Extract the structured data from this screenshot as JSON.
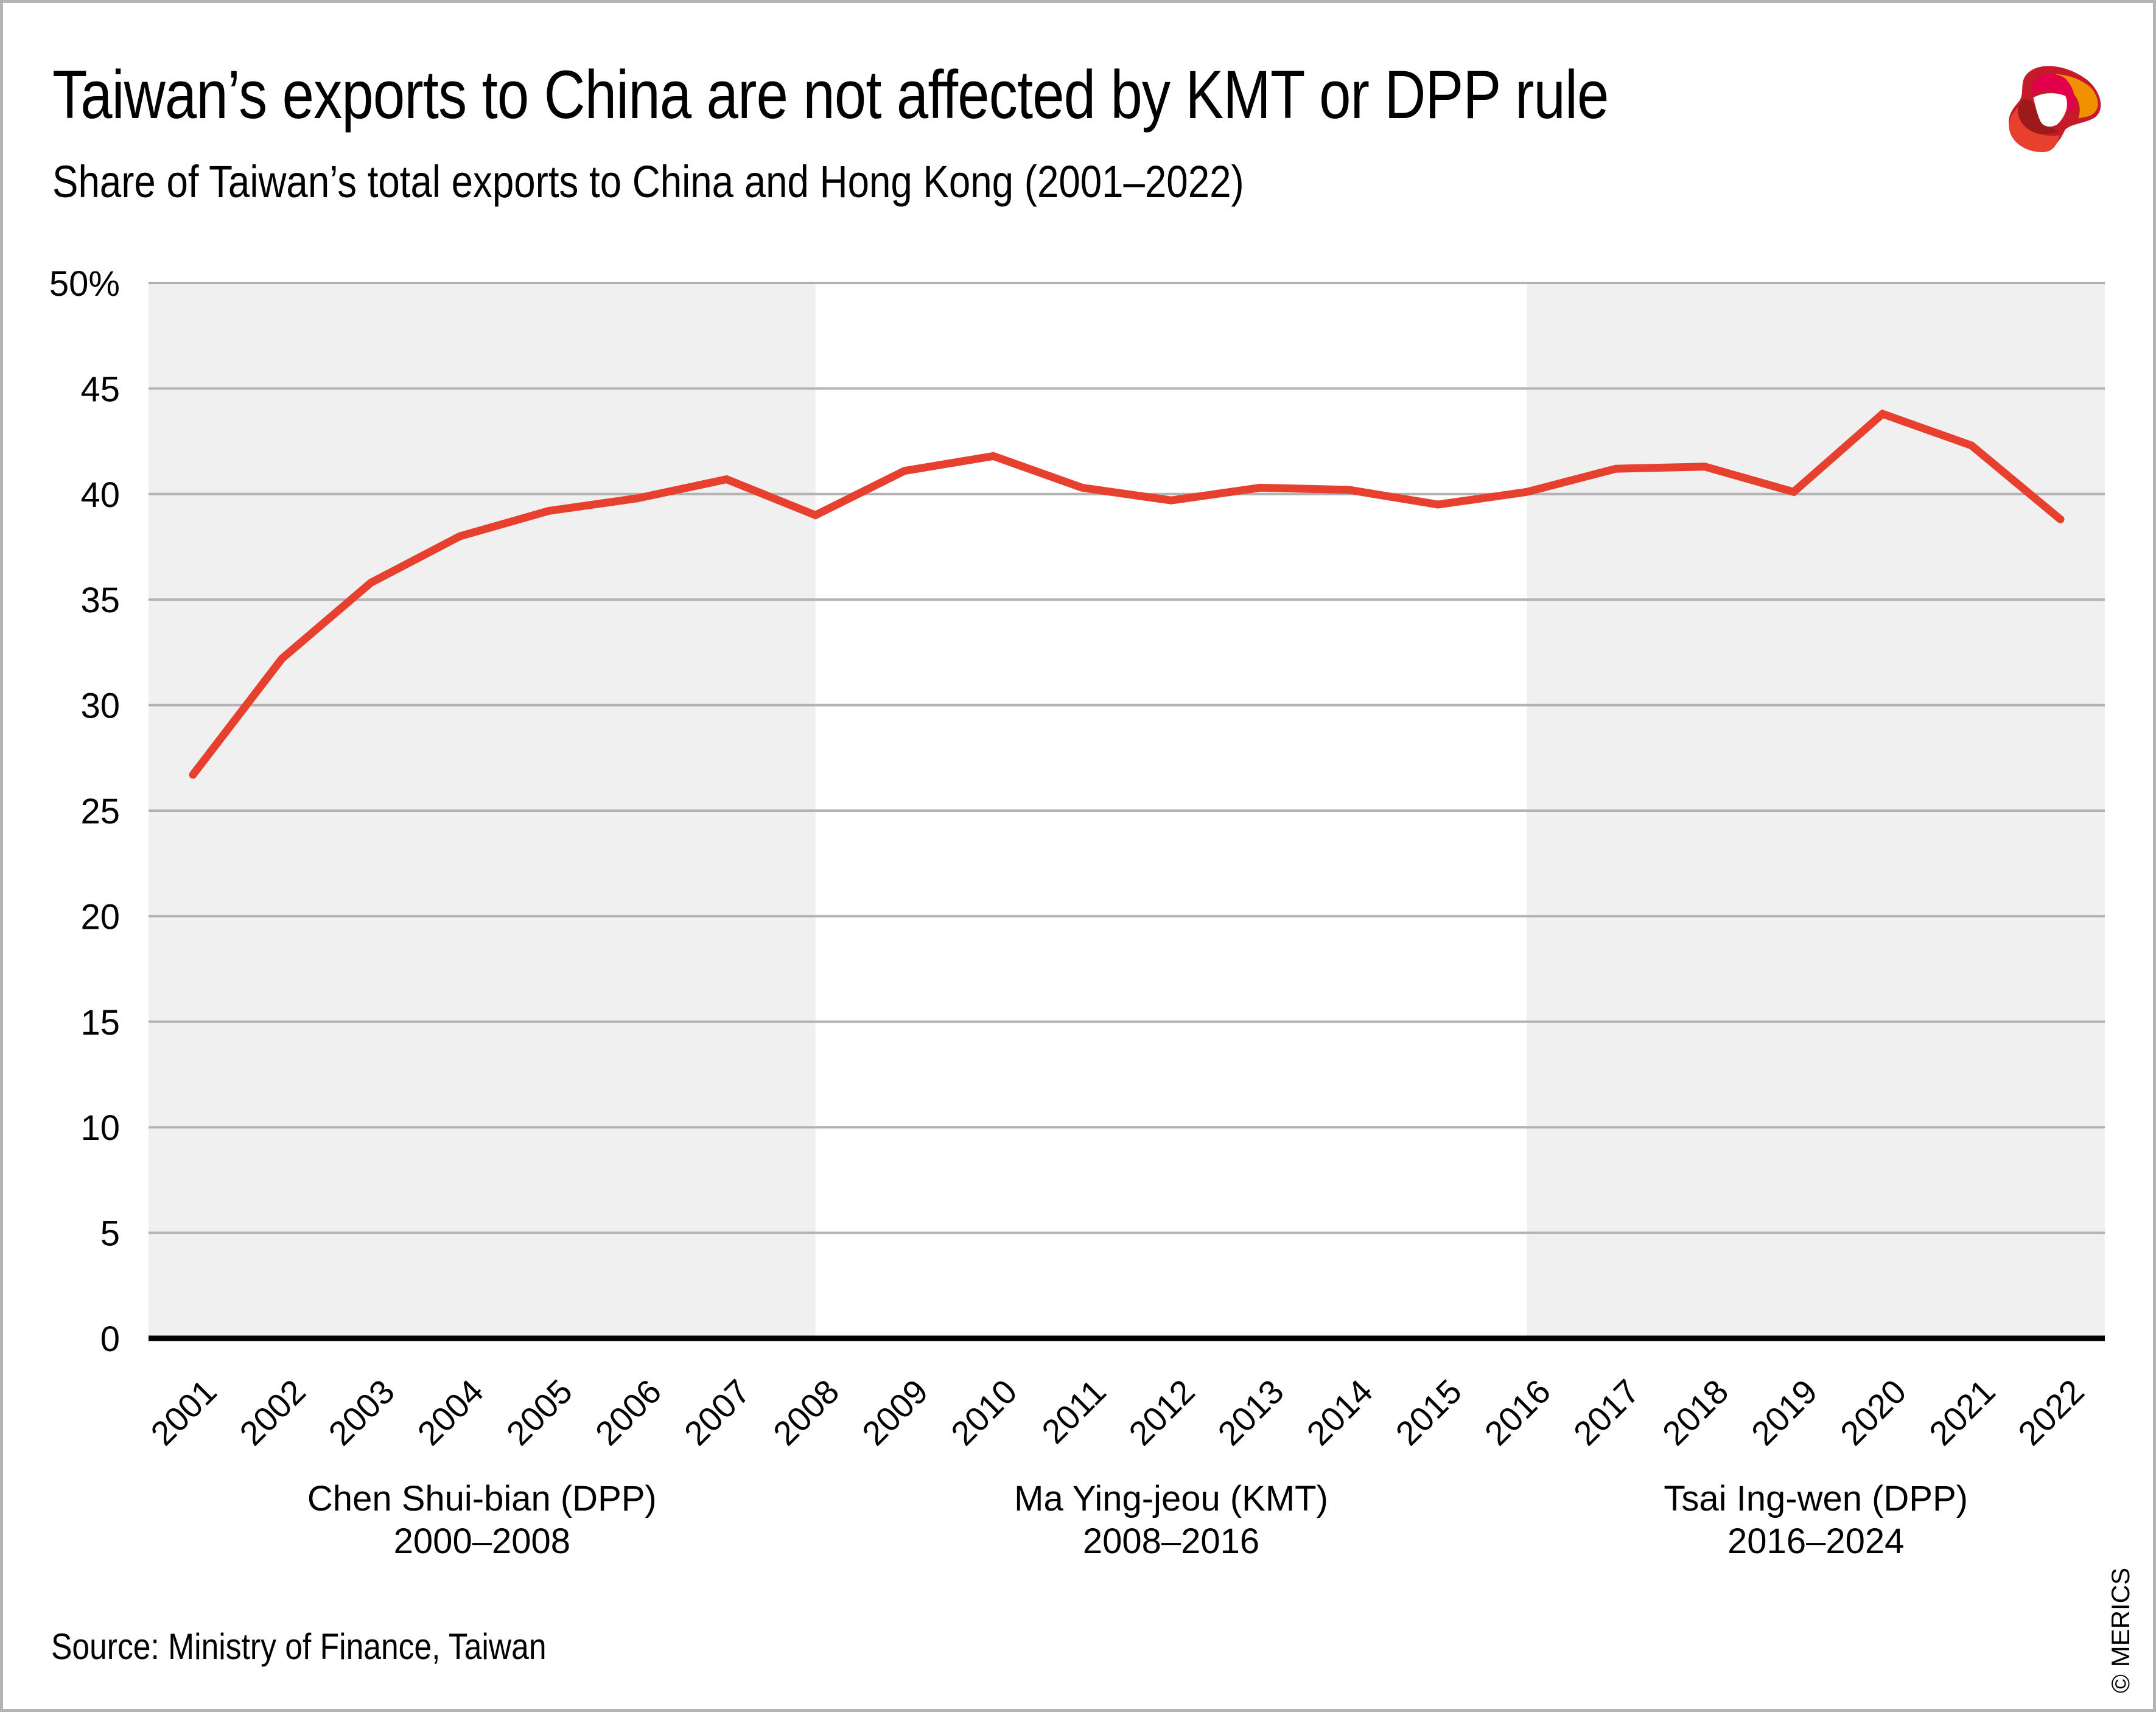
{
  "header": {
    "title": "Taiwan’s exports to China are not affected by KMT or DPP rule",
    "subtitle": "Share of Taiwan’s total exports to China and Hong Kong (2001–2022)",
    "logo_icon": "merics-logo-icon"
  },
  "footer": {
    "source": "Source: Ministry of Finance, Taiwan",
    "copyright": "© MERICS"
  },
  "colors": {
    "line": "#e8402e",
    "shade": "#f0f0f0",
    "grid": "#b2b2b2",
    "baseline": "#000000",
    "frame": "#b3b3b3"
  },
  "chart_data": {
    "type": "line",
    "title": "Taiwan’s exports to China are not affected by KMT or DPP rule",
    "subtitle": "Share of Taiwan’s total exports to China and Hong Kong (2001–2022)",
    "xlabel": "",
    "ylabel": "",
    "categories": [
      "2001",
      "2002",
      "2003",
      "2004",
      "2005",
      "2006",
      "2007",
      "2008",
      "2009",
      "2010",
      "2011",
      "2012",
      "2013",
      "2014",
      "2015",
      "2016",
      "2017",
      "2018",
      "2019",
      "2020",
      "2021",
      "2022"
    ],
    "series": [
      {
        "name": "Share of exports to China and Hong Kong (%)",
        "color": "#e8402e",
        "values": [
          26.7,
          32.2,
          35.8,
          38.0,
          39.2,
          39.8,
          40.7,
          39.0,
          41.1,
          41.8,
          40.3,
          39.7,
          40.3,
          40.2,
          39.5,
          40.1,
          41.2,
          41.3,
          40.1,
          43.8,
          42.3,
          38.8
        ]
      }
    ],
    "ylim": [
      0,
      50
    ],
    "yticks": [
      0,
      5,
      10,
      15,
      20,
      25,
      30,
      35,
      40,
      45,
      50
    ],
    "ytick_labels": [
      "0",
      "5",
      "10",
      "15",
      "20",
      "25",
      "30",
      "35",
      "40",
      "45",
      "50%"
    ],
    "grid": true,
    "legend": "none",
    "shaded_periods": [
      {
        "name": "Chen Shui-bian (DPP)",
        "years": "2000–2008",
        "from": "2001",
        "to": "2008",
        "shaded": true
      },
      {
        "name": "Ma Ying-jeou (KMT)",
        "years": "2008–2016",
        "from": "2008",
        "to": "2016",
        "shaded": false
      },
      {
        "name": "Tsai Ing-wen (DPP)",
        "years": "2016–2024",
        "from": "2016",
        "to": "2022",
        "shaded": true
      }
    ]
  }
}
